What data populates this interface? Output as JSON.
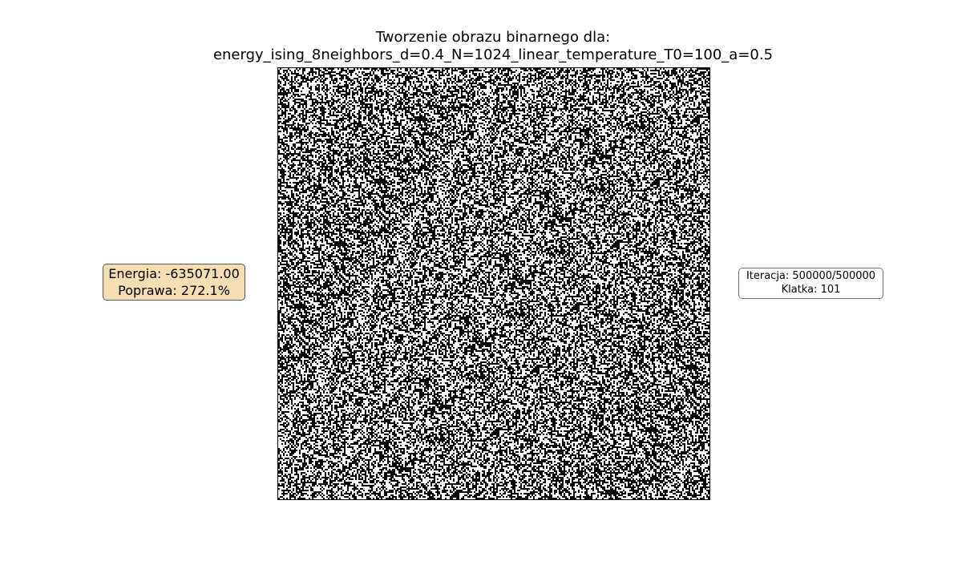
{
  "title": {
    "line1": "Tworzenie obrazu binarnego dla:",
    "line2": "energy_ising_8neighbors_d=0.4_N=1024_linear_temperature_T0=100_a=0.5"
  },
  "image": {
    "description_type": "binary-noise",
    "colors": {
      "on": "#000000",
      "off": "#ffffff"
    },
    "grid_size": 1024
  },
  "energy_panel": {
    "energy": "Energia: -635071.00",
    "improvement": "Poprawa: 272.1%",
    "background": "#f5deb3"
  },
  "status_panel": {
    "iteration": "Iteracja: 500000/500000",
    "frame": "Klatka: 101"
  }
}
